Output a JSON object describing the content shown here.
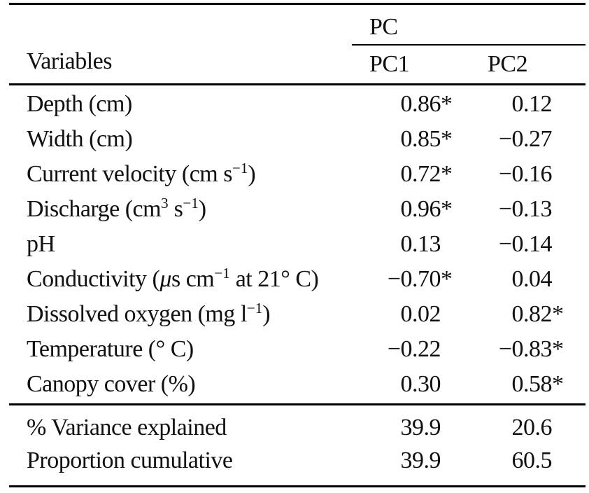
{
  "colors": {
    "text": "#111111",
    "rule": "#000000",
    "background": "#ffffff"
  },
  "table": {
    "group_header": "PC",
    "variables_label": "Variables",
    "col1_label": "PC1",
    "col2_label": "PC2",
    "significance_mark": "*",
    "rows": [
      {
        "label_parts": [
          {
            "text": "Depth (cm)",
            "style": "normal"
          }
        ],
        "pc1": {
          "value": "0.86",
          "mark": "*"
        },
        "pc2": {
          "value": "0.12",
          "mark": ""
        }
      },
      {
        "label_parts": [
          {
            "text": "Width (cm)",
            "style": "normal"
          }
        ],
        "pc1": {
          "value": "0.85",
          "mark": "*"
        },
        "pc2": {
          "value": "−0.27",
          "mark": ""
        }
      },
      {
        "label_parts": [
          {
            "text": "Current velocity (cm s",
            "style": "normal"
          },
          {
            "text": "−1",
            "style": "sup"
          },
          {
            "text": ")",
            "style": "normal"
          }
        ],
        "pc1": {
          "value": "0.72",
          "mark": "*"
        },
        "pc2": {
          "value": "−0.16",
          "mark": ""
        }
      },
      {
        "label_parts": [
          {
            "text": "Discharge (cm",
            "style": "normal"
          },
          {
            "text": "3",
            "style": "sup"
          },
          {
            "text": " s",
            "style": "normal"
          },
          {
            "text": "−1",
            "style": "sup"
          },
          {
            "text": ")",
            "style": "normal"
          }
        ],
        "pc1": {
          "value": "0.96",
          "mark": "*"
        },
        "pc2": {
          "value": "−0.13",
          "mark": ""
        }
      },
      {
        "label_parts": [
          {
            "text": "pH",
            "style": "normal"
          }
        ],
        "pc1": {
          "value": "0.13",
          "mark": ""
        },
        "pc2": {
          "value": "−0.14",
          "mark": ""
        }
      },
      {
        "label_parts": [
          {
            "text": "Conductivity (",
            "style": "normal"
          },
          {
            "text": "μ",
            "style": "ital"
          },
          {
            "text": "s cm",
            "style": "normal"
          },
          {
            "text": "−1",
            "style": "sup"
          },
          {
            "text": " at 21° C)",
            "style": "normal"
          }
        ],
        "pc1": {
          "value": "−0.70",
          "mark": "*"
        },
        "pc2": {
          "value": "0.04",
          "mark": ""
        }
      },
      {
        "label_parts": [
          {
            "text": "Dissolved oxygen (mg l",
            "style": "normal"
          },
          {
            "text": "−1",
            "style": "sup"
          },
          {
            "text": ")",
            "style": "normal"
          }
        ],
        "pc1": {
          "value": "0.02",
          "mark": ""
        },
        "pc2": {
          "value": "0.82",
          "mark": "*"
        }
      },
      {
        "label_parts": [
          {
            "text": "Temperature (° C)",
            "style": "normal"
          }
        ],
        "pc1": {
          "value": "−0.22",
          "mark": ""
        },
        "pc2": {
          "value": "−0.83",
          "mark": "*"
        }
      },
      {
        "label_parts": [
          {
            "text": "Canopy cover (%)",
            "style": "normal"
          }
        ],
        "pc1": {
          "value": "0.30",
          "mark": ""
        },
        "pc2": {
          "value": "0.58",
          "mark": "*"
        }
      }
    ],
    "summary_rows": [
      {
        "label_parts": [
          {
            "text": "% Variance explained",
            "style": "normal"
          }
        ],
        "pc1": {
          "value": "39.9",
          "mark": ""
        },
        "pc2": {
          "value": "20.6",
          "mark": ""
        }
      },
      {
        "label_parts": [
          {
            "text": "Proportion cumulative",
            "style": "normal"
          }
        ],
        "pc1": {
          "value": "39.9",
          "mark": ""
        },
        "pc2": {
          "value": "60.5",
          "mark": ""
        }
      }
    ]
  }
}
